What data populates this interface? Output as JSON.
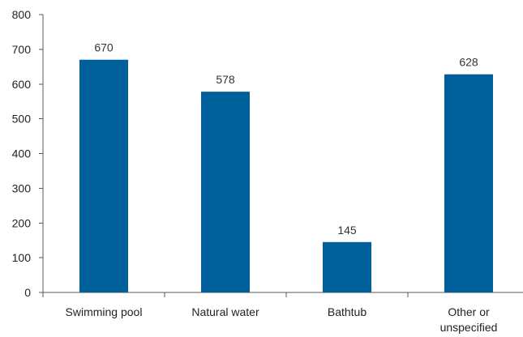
{
  "chart_data": {
    "type": "bar",
    "title": "",
    "xlabel": "",
    "ylabel": "",
    "categories": [
      "Swimming pool",
      "Natural water",
      "Bathtub",
      "Other or unspecified"
    ],
    "category_lines": [
      [
        "Swimming pool"
      ],
      [
        "Natural water"
      ],
      [
        "Bathtub"
      ],
      [
        "Other or",
        "unspecified"
      ]
    ],
    "values": [
      670,
      578,
      145,
      628
    ],
    "ylim": [
      0,
      800
    ],
    "yticks": [
      0,
      100,
      200,
      300,
      400,
      500,
      600,
      700,
      800
    ],
    "bar_color": "#00609c",
    "grid": false,
    "legend": "none"
  }
}
